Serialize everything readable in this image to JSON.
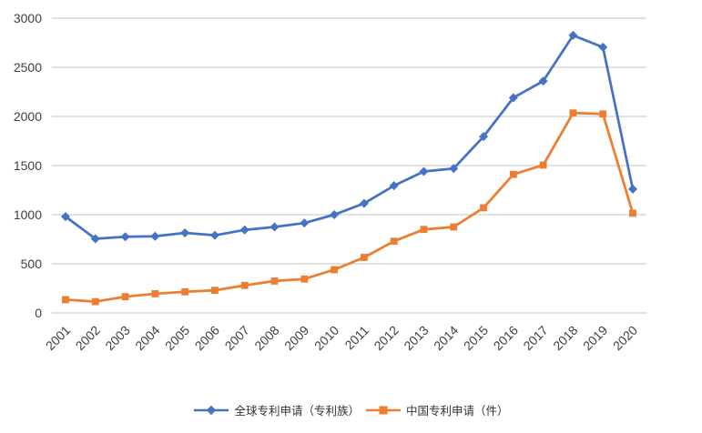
{
  "colors": {
    "series_global": "#4472C4",
    "series_china": "#ED7D31",
    "gridline": "#C6C6C6",
    "axis_text": "#404040",
    "background": "#FFFFFF"
  },
  "chart_data": {
    "type": "line",
    "title": "",
    "xlabel": "",
    "ylabel": "",
    "categories": [
      "2001",
      "2002",
      "2003",
      "2004",
      "2005",
      "2006",
      "2007",
      "2008",
      "2009",
      "2010",
      "2011",
      "2012",
      "2013",
      "2014",
      "2015",
      "2016",
      "2017",
      "2018",
      "2019",
      "2020"
    ],
    "series": [
      {
        "name": "全球专利申请（专利族）",
        "color": "#4472C4",
        "marker": "diamond",
        "values": [
          980,
          755,
          775,
          780,
          815,
          790,
          845,
          875,
          915,
          1000,
          1115,
          1295,
          1440,
          1470,
          1795,
          2190,
          2360,
          2825,
          2705,
          1260
        ]
      },
      {
        "name": "中国专利申请（件）",
        "color": "#ED7D31",
        "marker": "square",
        "values": [
          135,
          115,
          165,
          195,
          215,
          230,
          280,
          325,
          345,
          440,
          565,
          730,
          850,
          875,
          1070,
          1410,
          1505,
          2035,
          2025,
          1015
        ]
      }
    ],
    "ylim": [
      0,
      3000
    ],
    "y_ticks": [
      0,
      500,
      1000,
      1500,
      2000,
      2500,
      3000
    ],
    "grid": true,
    "legend_position": "bottom",
    "x_tick_rotation": -45
  }
}
